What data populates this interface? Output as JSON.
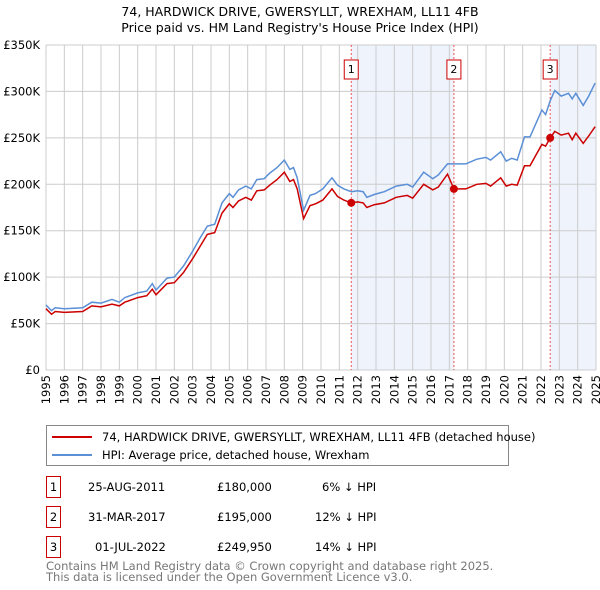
{
  "title_line1": "74, HARDWICK DRIVE, GWERSYLLT, WREXHAM, LL11 4FB",
  "title_line2": "Price paid vs. HM Land Registry's House Price Index (HPI)",
  "chart_data": {
    "type": "line",
    "ylim": [
      0,
      350000
    ],
    "xlim": [
      1995,
      2025
    ],
    "yticks": [
      0,
      50000,
      100000,
      150000,
      200000,
      250000,
      300000,
      350000
    ],
    "ytick_labels": [
      "£0",
      "£50K",
      "£100K",
      "£150K",
      "£200K",
      "£250K",
      "£300K",
      "£350K"
    ],
    "xticks": [
      "1995",
      "1996",
      "1997",
      "1998",
      "1999",
      "2000",
      "2001",
      "2002",
      "2003",
      "2004",
      "2005",
      "2006",
      "2007",
      "2008",
      "2009",
      "2010",
      "2011",
      "2012",
      "2013",
      "2014",
      "2015",
      "2016",
      "2017",
      "2018",
      "2019",
      "2020",
      "2021",
      "2022",
      "2023",
      "2024",
      "2025"
    ],
    "grid": true,
    "shaded_ranges": [
      [
        2011.65,
        2017.25
      ],
      [
        2022.5,
        2025
      ]
    ],
    "x": [
      1995.0,
      1995.3,
      1995.5,
      1996.0,
      1997.0,
      1997.5,
      1998.0,
      1998.6,
      1999.0,
      1999.3,
      2000.0,
      2000.5,
      2000.8,
      2001.0,
      2001.6,
      2002.0,
      2002.5,
      2003.0,
      2003.4,
      2003.8,
      2004.2,
      2004.6,
      2005.0,
      2005.2,
      2005.5,
      2005.9,
      2006.2,
      2006.5,
      2006.9,
      2007.2,
      2007.6,
      2008.0,
      2008.3,
      2008.5,
      2008.7,
      2009.05,
      2009.4,
      2009.7,
      2010.1,
      2010.6,
      2010.9,
      2011.25,
      2011.65,
      2012.0,
      2012.3,
      2012.5,
      2012.9,
      2013.45,
      2014.1,
      2014.7,
      2015.0,
      2015.6,
      2016.1,
      2016.4,
      2016.9,
      2017.25,
      2017.9,
      2018.5,
      2019.0,
      2019.25,
      2019.8,
      2020.1,
      2020.4,
      2020.7,
      2021.1,
      2021.4,
      2022.05,
      2022.25,
      2022.5,
      2022.75,
      2023.1,
      2023.5,
      2023.7,
      2023.9,
      2024.3,
      2024.6,
      2024.95
    ],
    "series": [
      {
        "name": "74, HARDWICK DRIVE, GWERSYLLT, WREXHAM, LL11 4FB (detached house)",
        "color": "#cc0000",
        "values": [
          66,
          60,
          63,
          62,
          63,
          69,
          68,
          71,
          69,
          73,
          78,
          80,
          87,
          81,
          93,
          94,
          105,
          120,
          133,
          146,
          148,
          169,
          179,
          175,
          182,
          186,
          183,
          193,
          194,
          199,
          205,
          213,
          203,
          205,
          195,
          163,
          177,
          179,
          183,
          195,
          187,
          183,
          180,
          181,
          180,
          175,
          178,
          180,
          186,
          188,
          185,
          200,
          194,
          197,
          211,
          195,
          195,
          200,
          201,
          198,
          207,
          198,
          200,
          199,
          220,
          220,
          243,
          241,
          250,
          257,
          253,
          255,
          248,
          255,
          244,
          252,
          262
        ]
      },
      {
        "name": "HPI: Average price, detached house, Wrexham",
        "color": "#5b8fd6",
        "values": [
          70,
          64,
          67,
          66,
          67,
          73,
          72,
          76,
          73,
          78,
          83,
          85,
          93,
          86,
          99,
          100,
          112,
          128,
          142,
          155,
          157,
          180,
          190,
          186,
          194,
          198,
          195,
          205,
          206,
          212,
          218,
          226,
          216,
          218,
          207,
          172,
          188,
          190,
          195,
          207,
          199,
          195,
          192,
          193,
          192,
          186,
          189,
          192,
          198,
          200,
          197,
          213,
          206,
          210,
          222,
          222,
          222,
          227,
          229,
          226,
          235,
          225,
          228,
          226,
          251,
          251,
          280,
          275,
          290,
          301,
          295,
          298,
          292,
          298,
          285,
          295,
          309
        ]
      }
    ],
    "value_unit": "thousand GBP",
    "sales": [
      {
        "label": "1",
        "x": 2011.65,
        "value": 180000
      },
      {
        "label": "2",
        "x": 2017.25,
        "value": 195000
      },
      {
        "label": "3",
        "x": 2022.5,
        "value": 249950
      }
    ],
    "legend_placement": "bottom"
  },
  "legend": {
    "red_label": "74, HARDWICK DRIVE, GWERSYLLT, WREXHAM, LL11 4FB (detached house)",
    "blue_label": "HPI: Average price, detached house, Wrexham"
  },
  "transactions": [
    {
      "num": "1",
      "date": "25-AUG-2011",
      "price": "£180,000",
      "hpi": "6% ↓ HPI"
    },
    {
      "num": "2",
      "date": "31-MAR-2017",
      "price": "£195,000",
      "hpi": "12% ↓ HPI"
    },
    {
      "num": "3",
      "date": "01-JUL-2022",
      "price": "£249,950",
      "hpi": "14% ↓ HPI"
    }
  ],
  "footer_line1": "Contains HM Land Registry data © Crown copyright and database right 2025.",
  "footer_line2": "This data is licensed under the Open Government Licence v3.0."
}
